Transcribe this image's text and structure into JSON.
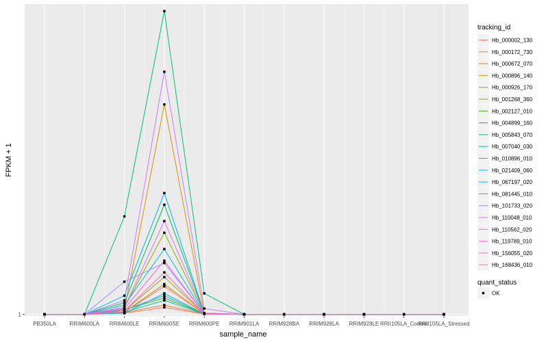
{
  "chart_data": {
    "type": "line",
    "title": "",
    "xlabel": "sample_name",
    "ylabel": "FPKM + 1",
    "y_tick_labels": [
      "1"
    ],
    "y_tick_values": [
      1
    ],
    "ylim": [
      0.93,
      14.3
    ],
    "grid": true,
    "legend_position": "right",
    "categories": [
      "PB350LA",
      "RRIM600LA",
      "RRIM600LE",
      "RRIM600SE",
      "RRIM600PE",
      "RRIM901LA",
      "RRIM928BA",
      "RRIM928LA",
      "RRIM928LE",
      "RRII105LA_Control",
      "RRII105LA_Stressed"
    ],
    "series": [
      {
        "name": "Hb_000002_130",
        "color": "#F8766D",
        "values": [
          1,
          1,
          1.05,
          1.3,
          1.01,
          1,
          1,
          1,
          1,
          1,
          1
        ]
      },
      {
        "name": "Hb_000172_730",
        "color": "#EA8331",
        "values": [
          1,
          1,
          1.08,
          1.4,
          1.02,
          1,
          1,
          1,
          1,
          1,
          1
        ]
      },
      {
        "name": "Hb_000672_070",
        "color": "#D89000",
        "values": [
          1,
          1,
          1.2,
          10.0,
          1.03,
          1,
          1,
          1,
          1,
          1,
          1
        ]
      },
      {
        "name": "Hb_000896_140",
        "color": "#C09B00",
        "values": [
          1,
          1,
          1.1,
          2.3,
          1.02,
          1,
          1,
          1,
          1,
          1,
          1
        ]
      },
      {
        "name": "Hb_000926_170",
        "color": "#A3A500",
        "values": [
          1,
          1,
          1.15,
          2.6,
          1.02,
          1,
          1,
          1,
          1,
          1,
          1
        ]
      },
      {
        "name": "Hb_001268_360",
        "color": "#7CAE00",
        "values": [
          1,
          1,
          1.3,
          4.5,
          1.04,
          1,
          1,
          1,
          1,
          1,
          1
        ]
      },
      {
        "name": "Hb_002127_010",
        "color": "#39B600",
        "values": [
          1,
          1,
          1.2,
          1.7,
          1.02,
          1,
          1,
          1,
          1,
          1,
          1
        ]
      },
      {
        "name": "Hb_004899_160",
        "color": "#00BB4E",
        "values": [
          1,
          1,
          1.5,
          5.7,
          1.05,
          1,
          1,
          1,
          1,
          1,
          1
        ]
      },
      {
        "name": "Hb_005843_070",
        "color": "#00BF7D",
        "values": [
          1,
          1,
          5.2,
          14.0,
          1.9,
          1,
          1,
          1,
          1,
          1,
          1
        ]
      },
      {
        "name": "Hb_007040_030",
        "color": "#00C1A3",
        "values": [
          1,
          1,
          1.1,
          1.6,
          1.01,
          1,
          1,
          1,
          1,
          1,
          1
        ]
      },
      {
        "name": "Hb_010896_010",
        "color": "#00BFC4",
        "values": [
          1,
          1,
          1.05,
          1.9,
          1.02,
          1,
          1,
          1,
          1,
          1,
          1
        ]
      },
      {
        "name": "Hb_021409_060",
        "color": "#00BAE0",
        "values": [
          1,
          1,
          1.4,
          3.8,
          1.03,
          1,
          1,
          1,
          1,
          1,
          1
        ]
      },
      {
        "name": "Hb_067197_020",
        "color": "#00B0F6",
        "values": [
          1,
          1,
          1.8,
          6.2,
          1.05,
          1,
          1,
          1,
          1,
          1,
          1
        ]
      },
      {
        "name": "Hb_081445_010",
        "color": "#35A2FF",
        "values": [
          1,
          1,
          1.2,
          1.8,
          1.02,
          1,
          1,
          1,
          1,
          1,
          1
        ]
      },
      {
        "name": "Hb_101733_020",
        "color": "#9590FF",
        "values": [
          1,
          1,
          2.4,
          3.2,
          1.04,
          1,
          1,
          1,
          1,
          1,
          1
        ]
      },
      {
        "name": "Hb_110048_010",
        "color": "#C77CFF",
        "values": [
          1,
          1,
          1.6,
          11.4,
          1.25,
          1,
          1,
          1,
          1,
          1,
          1
        ]
      },
      {
        "name": "Hb_110562_020",
        "color": "#E76BF3",
        "values": [
          1,
          1,
          1.3,
          5.0,
          1.06,
          1,
          1,
          1,
          1,
          1,
          1
        ]
      },
      {
        "name": "Hb_119789_010",
        "color": "#FA62DB",
        "values": [
          1,
          1,
          1.25,
          3.3,
          1.03,
          1,
          1,
          1,
          1,
          1,
          1
        ]
      },
      {
        "name": "Hb_156055_020",
        "color": "#FF62BC",
        "values": [
          1,
          1,
          1.15,
          2.8,
          1.02,
          1,
          1,
          1,
          1,
          1,
          1
        ]
      },
      {
        "name": "Hb_168436_010",
        "color": "#FF6C91",
        "values": [
          1,
          1,
          1.1,
          2.2,
          1.02,
          1,
          1,
          1,
          1,
          1,
          1
        ]
      }
    ],
    "legend": {
      "title": "tracking_id",
      "status_title": "quant_status",
      "status_items": [
        {
          "label": "OK",
          "symbol": "square"
        }
      ]
    }
  }
}
